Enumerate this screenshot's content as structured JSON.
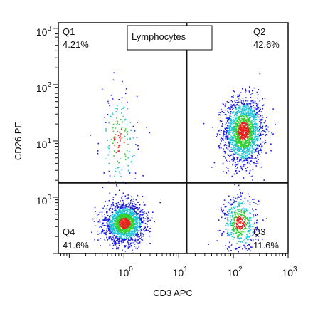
{
  "chart_data": {
    "type": "scatter",
    "title": "Lymphocytes",
    "xlabel": "CD3 APC",
    "ylabel": "CD26 PE",
    "xscale": "log",
    "yscale": "log",
    "xlim_decades": [
      -1.2,
      3
    ],
    "ylim_decades": [
      -1,
      3.1
    ],
    "x_ticks": [
      {
        "base": "10",
        "exp": "0",
        "value": 1
      },
      {
        "base": "10",
        "exp": "1",
        "value": 10
      },
      {
        "base": "10",
        "exp": "2",
        "value": 100
      },
      {
        "base": "10",
        "exp": "3",
        "value": 1000
      }
    ],
    "y_ticks": [
      {
        "base": "10",
        "exp": "0",
        "value": 1
      },
      {
        "base": "10",
        "exp": "1",
        "value": 10
      },
      {
        "base": "10",
        "exp": "2",
        "value": 100
      },
      {
        "base": "10",
        "exp": "3",
        "value": 1000
      }
    ],
    "quadrant_gate": {
      "x": 14,
      "y": 1.8
    },
    "quadrants": [
      {
        "name": "Q1",
        "percent": "4.21%",
        "position": "top-left"
      },
      {
        "name": "Q2",
        "percent": "42.6%",
        "position": "top-right"
      },
      {
        "name": "Q3",
        "percent": "11.6%",
        "position": "bottom-right"
      },
      {
        "name": "Q4",
        "percent": "41.6%",
        "position": "bottom-left"
      }
    ],
    "populations": [
      {
        "name": "Q2",
        "center_x": 150,
        "center_y": 15,
        "sigma_x_decades": 0.18,
        "sigma_y_decades": 0.3,
        "count": 1700
      },
      {
        "name": "Q4",
        "center_x": 1.0,
        "center_y": 0.35,
        "sigma_x_decades": 0.18,
        "sigma_y_decades": 0.17,
        "count": 1700
      },
      {
        "name": "Q3",
        "center_x": 130,
        "center_y": 0.35,
        "sigma_x_decades": 0.16,
        "sigma_y_decades": 0.25,
        "count": 470
      },
      {
        "name": "Q1",
        "center_x": 0.8,
        "center_y": 10,
        "sigma_x_decades": 0.17,
        "sigma_y_decades": 0.45,
        "count": 170
      }
    ],
    "grid": false,
    "legend": "none"
  },
  "colors": {
    "axis": "#111111",
    "gate_line": "#111111",
    "density_low": "#1a1ae6",
    "density_mid": "#22c4d6",
    "density_high": "#2fd12f",
    "density_peak": "#e8231d"
  }
}
